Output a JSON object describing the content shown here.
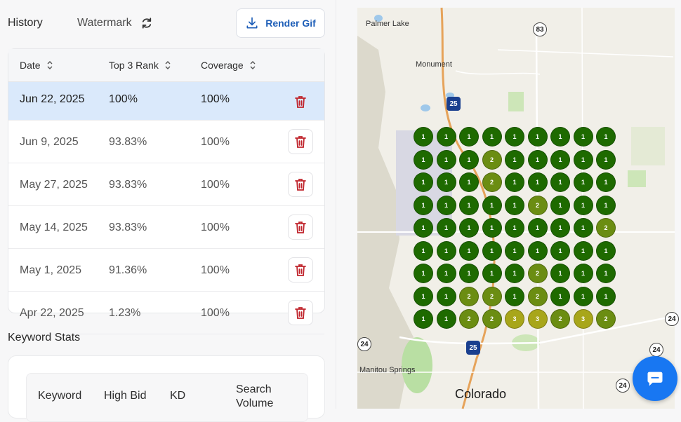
{
  "history": {
    "title": "History",
    "watermark_label": "Watermark",
    "render_button": "Render Gif"
  },
  "table": {
    "headers": [
      "Date",
      "Top 3 Rank",
      "Coverage"
    ],
    "rows": [
      {
        "date": "Jun 22, 2025",
        "top3": "100%",
        "coverage": "100%",
        "active": true
      },
      {
        "date": "Jun 9, 2025",
        "top3": "93.83%",
        "coverage": "100%"
      },
      {
        "date": "May 27, 2025",
        "top3": "93.83%",
        "coverage": "100%"
      },
      {
        "date": "May 14, 2025",
        "top3": "93.83%",
        "coverage": "100%"
      },
      {
        "date": "May 1, 2025",
        "top3": "91.36%",
        "coverage": "100%"
      },
      {
        "date": "Apr 22, 2025",
        "top3": "1.23%",
        "coverage": "100%"
      }
    ]
  },
  "keyword_stats": {
    "title": "Keyword Stats",
    "headers": [
      "Keyword",
      "High Bid",
      "KD",
      "Search Volume"
    ]
  },
  "map": {
    "labels": [
      "Palmer Lake",
      "Monument",
      "Manitou Springs"
    ],
    "city": "Colorado",
    "routes": [
      "83",
      "25",
      "24",
      "24",
      "24",
      "25",
      "24"
    ],
    "rank_grid": [
      [
        1,
        1,
        1,
        1,
        1,
        1,
        1,
        1,
        1
      ],
      [
        1,
        1,
        1,
        2,
        1,
        1,
        1,
        1,
        1
      ],
      [
        1,
        1,
        1,
        2,
        1,
        1,
        1,
        1,
        1
      ],
      [
        1,
        1,
        1,
        1,
        1,
        2,
        1,
        1,
        1
      ],
      [
        1,
        1,
        1,
        1,
        1,
        1,
        1,
        1,
        2
      ],
      [
        1,
        1,
        1,
        1,
        1,
        1,
        1,
        1,
        1
      ],
      [
        1,
        1,
        1,
        1,
        1,
        2,
        1,
        1,
        1
      ],
      [
        1,
        1,
        2,
        2,
        1,
        2,
        1,
        1,
        1
      ],
      [
        1,
        1,
        2,
        2,
        3,
        3,
        2,
        3,
        2
      ]
    ],
    "rank_colors": {
      "1": "#1e6a00",
      "2": "#6b8d12",
      "3": "#a8a61a"
    }
  },
  "colors": {
    "accent": "#1f5fb8",
    "delete": "#c0252d",
    "active_row": "#dae9fb",
    "chat": "#1877f2"
  }
}
